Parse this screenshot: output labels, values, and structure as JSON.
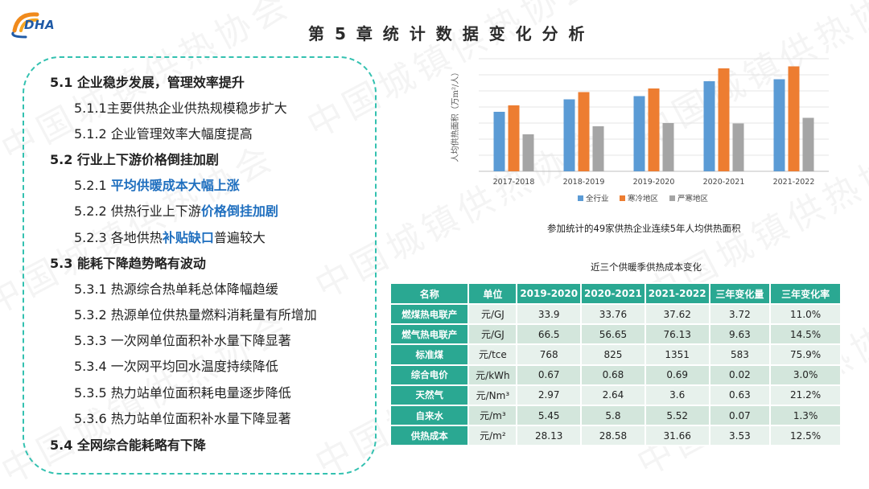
{
  "header": {
    "logo_text": "DHA",
    "title": "第 5 章    统 计 数 据 变 化 分 析"
  },
  "watermark": "中国城镇供热协会",
  "outline": [
    {
      "level": 1,
      "text": "5.1 企业稳步发展，管理效率提升"
    },
    {
      "level": 2,
      "text": "5.1.1主要供热企业供热规模稳步扩大"
    },
    {
      "level": 2,
      "text": "5.1.2 企业管理效率大幅度提高"
    },
    {
      "level": 1,
      "text": "5.2 行业上下游价格倒挂加剧"
    },
    {
      "level": 2,
      "text_plain": "5.2.1 ",
      "text_hl": "平均供暖成本大幅上涨",
      "text_after": ""
    },
    {
      "level": 2,
      "text_plain": "5.2.2 供热行业上下游",
      "text_hl": "价格倒挂加剧",
      "text_after": ""
    },
    {
      "level": 2,
      "text_plain": "5.2.3 各地供热",
      "text_hl": "补贴缺口",
      "text_after": "普遍较大"
    },
    {
      "level": 1,
      "text": "5.3 能耗下降趋势略有波动"
    },
    {
      "level": 2,
      "text": "5.3.1 热源综合热单耗总体降幅趋缓"
    },
    {
      "level": 2,
      "text": "5.3.2 热源单位供热量燃料消耗量有所增加"
    },
    {
      "level": 2,
      "text": "5.3.3 一次网单位面积补水量下降显著"
    },
    {
      "level": 2,
      "text": "5.3.4 一次网平均回水温度持续降低"
    },
    {
      "level": 2,
      "text": "5.3.5 热力站单位面积耗电量逐步降低"
    },
    {
      "level": 2,
      "text": "5.3.6 热力站单位面积补水量下降显著"
    },
    {
      "level": 1,
      "text": "5.4 全网综合能耗略有下降"
    }
  ],
  "chart_data": {
    "type": "bar",
    "title": "",
    "caption": "参加统计的49家供热企业连续5年人均供热面积",
    "ylabel": "人均供热面积（万m²/人）",
    "xlabel": "",
    "categories": [
      "2017-2018",
      "2018-2019",
      "2019-2020",
      "2020-2021",
      "2021-2022"
    ],
    "series": [
      {
        "name": "全行业",
        "color": "#5b9bd5",
        "values": [
          1.48,
          1.79,
          1.87,
          2.24,
          2.29
        ]
      },
      {
        "name": "寒冷地区",
        "color": "#ed7d31",
        "values": [
          1.64,
          1.97,
          2.06,
          2.56,
          2.61
        ]
      },
      {
        "name": "严寒地区",
        "color": "#a5a5a5",
        "values": [
          0.92,
          1.12,
          1.2,
          1.19,
          1.33
        ]
      }
    ],
    "ylim": [
      0,
      2.8
    ],
    "grid": true,
    "legend": "bottom"
  },
  "table": {
    "title": "近三个供暖季供热成本变化",
    "headers": [
      "名称",
      "单位",
      "2019-2020",
      "2020-2021",
      "2021-2022",
      "三年变化量",
      "三年变化率"
    ],
    "rows": [
      {
        "name": "燃煤热电联产",
        "unit": "元/GJ",
        "v1": "33.9",
        "v2": "33.76",
        "v3": "37.62",
        "delta": "3.72",
        "rate": "11.0%"
      },
      {
        "name": "燃气热电联产",
        "unit": "元/GJ",
        "v1": "66.5",
        "v2": "56.65",
        "v3": "76.13",
        "delta": "9.63",
        "rate": "14.5%"
      },
      {
        "name": "标准煤",
        "unit": "元/tce",
        "v1": "768",
        "v2": "825",
        "v3": "1351",
        "delta": "583",
        "rate": "75.9%"
      },
      {
        "name": "综合电价",
        "unit": "元/kWh",
        "v1": "0.67",
        "v2": "0.68",
        "v3": "0.69",
        "delta": "0.02",
        "rate": "3.0%"
      },
      {
        "name": "天然气",
        "unit": "元/Nm³",
        "v1": "2.97",
        "v2": "2.64",
        "v3": "3.6",
        "delta": "0.63",
        "rate": "21.2%"
      },
      {
        "name": "自来水",
        "unit": "元/m³",
        "v1": "5.45",
        "v2": "5.8",
        "v3": "5.52",
        "delta": "0.07",
        "rate": "1.3%"
      },
      {
        "name": "供热成本",
        "unit": "元/m²",
        "v1": "28.13",
        "v2": "28.58",
        "v3": "31.66",
        "delta": "3.53",
        "rate": "12.5%"
      }
    ]
  },
  "colors": {
    "accent": "#2aa892",
    "outline_border": "#33c1b0",
    "highlight": "#1f6fbf"
  }
}
